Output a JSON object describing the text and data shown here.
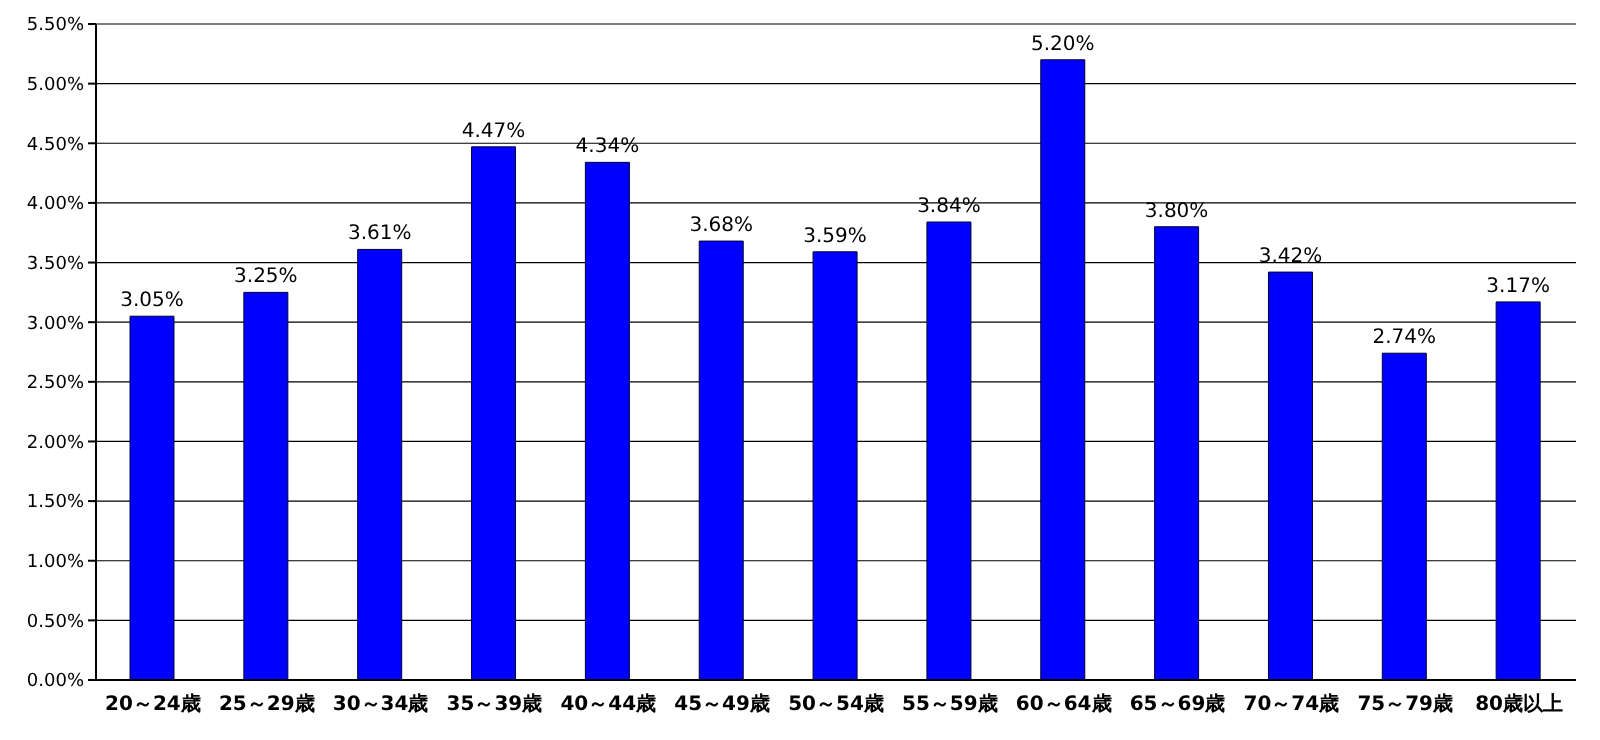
{
  "chart_data": {
    "type": "bar",
    "categories": [
      "20～24歳",
      "25～29歳",
      "30～34歳",
      "35～39歳",
      "40～44歳",
      "45～49歳",
      "50～54歳",
      "55～59歳",
      "60～64歳",
      "65～69歳",
      "70～74歳",
      "75～79歳",
      "80歳以上"
    ],
    "values": [
      3.05,
      3.25,
      3.61,
      4.47,
      4.34,
      3.68,
      3.59,
      3.84,
      5.2,
      3.8,
      3.42,
      2.74,
      3.17
    ],
    "value_labels": [
      "3.05%",
      "3.25%",
      "3.61%",
      "4.47%",
      "4.34%",
      "3.68%",
      "3.59%",
      "3.84%",
      "5.20%",
      "3.80%",
      "3.42%",
      "2.74%",
      "3.17%"
    ],
    "color": "#0000ff",
    "ylim": [
      0,
      5.5
    ],
    "yticks": [
      {
        "value": 0,
        "label": "0.00%"
      },
      {
        "value": 0.5,
        "label": "0.50%"
      },
      {
        "value": 1,
        "label": "1.00%"
      },
      {
        "value": 1.5,
        "label": "1.50%"
      },
      {
        "value": 2,
        "label": "2.00%"
      },
      {
        "value": 2.5,
        "label": "2.50%"
      },
      {
        "value": 3,
        "label": "3.00%"
      },
      {
        "value": 3.5,
        "label": "3.50%"
      },
      {
        "value": 4,
        "label": "4.00%"
      },
      {
        "value": 4.5,
        "label": "4.50%"
      },
      {
        "value": 5,
        "label": "5.00%"
      },
      {
        "value": 5.5,
        "label": "5.50%"
      }
    ],
    "grid": "y",
    "legend": false
  }
}
